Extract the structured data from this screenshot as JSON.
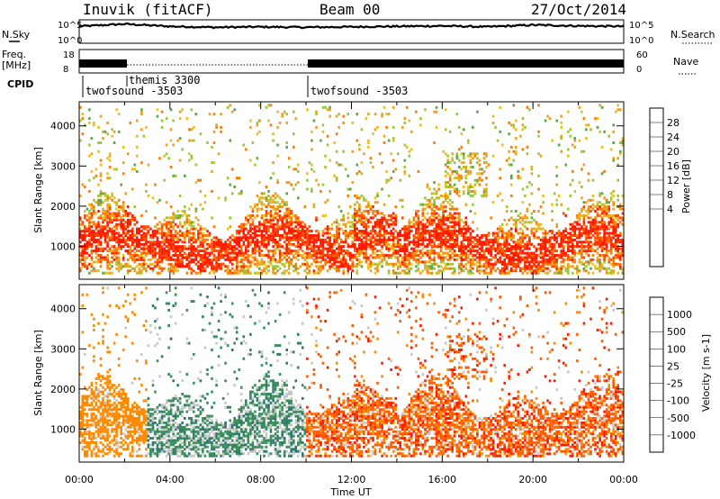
{
  "header": {
    "station": "Inuvik (fitACF)",
    "beam": "Beam 00",
    "date": "27/Oct/2014"
  },
  "top_panels": {
    "nsky_label": "N.Sky",
    "nsky_ticks": [
      "10^5",
      "10^0"
    ],
    "nsearch_label": "N.Search",
    "nsearch_ticks": [
      "10^5",
      "10^0"
    ],
    "freq_label": "Freq.",
    "freq_unit": "[MHz]",
    "freq_ticks": [
      "18",
      "8"
    ],
    "nave_label": "Nave",
    "nave_ticks": [
      "60",
      "0"
    ],
    "cpid_label": "CPID",
    "cpid_segments": [
      {
        "name": "twofsound -3503",
        "start_h": 0.0,
        "end_h": 2.0
      },
      {
        "name": "themis 3300",
        "start_h": 2.0,
        "end_h": 10.0
      },
      {
        "name": "twofsound -3503",
        "start_h": 10.0,
        "end_h": 24.0
      }
    ]
  },
  "colorbars": {
    "power": {
      "label": "Power [dB]",
      "ticks": [
        "28",
        "24",
        "20",
        "16",
        "12",
        "8",
        "4"
      ],
      "colors": [
        "#0000ff",
        "#1f4fb8",
        "#2f6f9f",
        "#3a8a5a",
        "#5aa84a",
        "#9ac83a",
        "#e8c020",
        "#f0a020",
        "#ff7a00",
        "#ff4a00",
        "#ff1a00"
      ]
    },
    "velocity": {
      "label": "Velocity [m s-1]",
      "ticks": [
        "1000",
        "500",
        "100",
        "25",
        "-25",
        "-100",
        "-500",
        "-1000"
      ],
      "colors": [
        "#1a3aff",
        "#2a5ab8",
        "#2f7a6f",
        "#3a8f5a",
        "#c8c8c8",
        "#ffb400",
        "#ff8a00",
        "#ff5a00",
        "#ff1a00"
      ]
    }
  },
  "chart_data": [
    {
      "type": "line",
      "title": "",
      "series": [
        {
          "name": "N.Sky",
          "x": [
            0,
            2,
            4,
            6,
            8,
            10,
            12,
            14,
            16,
            18,
            20,
            22,
            24
          ],
          "y": [
            3.6,
            4.1,
            3.6,
            3.4,
            3.5,
            3.4,
            3.5,
            3.6,
            3.7,
            3.5,
            3.9,
            3.7,
            3.6
          ]
        }
      ],
      "xlim": [
        0,
        24
      ]
    },
    {
      "type": "line",
      "series": [
        {
          "name": "Freq.",
          "x": [
            0,
            2,
            10,
            24
          ],
          "y": [
            10.5,
            10.5,
            10.5,
            10.5
          ]
        }
      ],
      "ylim": [
        8,
        18
      ],
      "xlim": [
        0,
        24
      ]
    },
    {
      "type": "heatmap",
      "title": "Power",
      "ylabel": "Slant Range [km]",
      "xlabel": "Time UT",
      "xlim": [
        0,
        24
      ],
      "ylim": [
        180,
        4600
      ],
      "colorbar": "Power [dB]",
      "zlim": [
        0,
        30
      ],
      "x_ticks": [
        "00:00",
        "04:00",
        "08:00",
        "12:00",
        "16:00",
        "20:00",
        "00:00"
      ],
      "y_ticks": [
        1000,
        2000,
        3000,
        4000
      ]
    },
    {
      "type": "heatmap",
      "title": "Velocity",
      "ylabel": "Slant Range [km]",
      "xlabel": "Time UT",
      "xlim": [
        0,
        24
      ],
      "ylim": [
        180,
        4600
      ],
      "colorbar": "Velocity [m s-1]",
      "zlim": [
        -1000,
        1000
      ],
      "x_ticks": [
        "00:00",
        "04:00",
        "08:00",
        "12:00",
        "16:00",
        "20:00",
        "00:00"
      ],
      "y_ticks": [
        1000,
        2000,
        3000,
        4000
      ]
    }
  ]
}
